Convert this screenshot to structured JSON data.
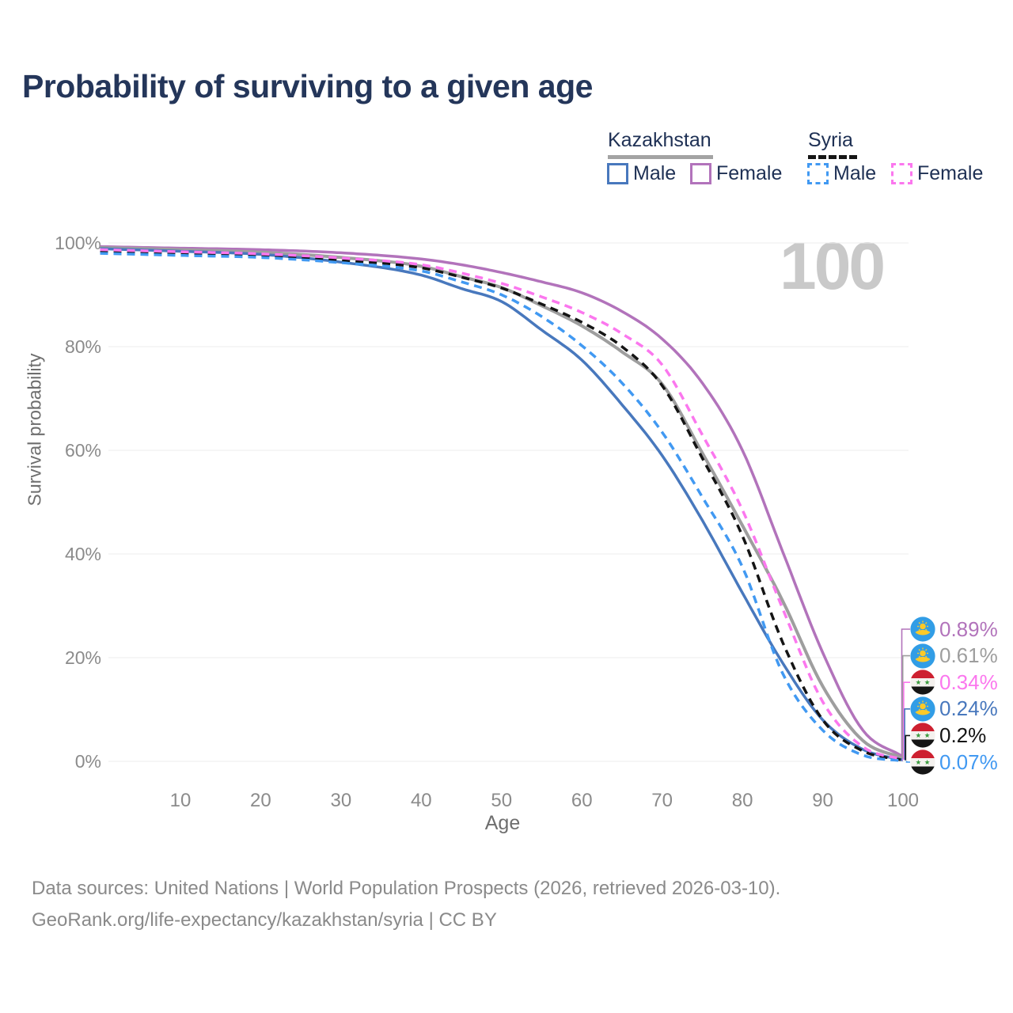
{
  "title": "Probability of surviving to a given age",
  "watermark": "100",
  "legend": {
    "groups": [
      {
        "country": "Kazakhstan",
        "line_style": "solid",
        "line_color": "#a3a3a3",
        "items": [
          {
            "label": "Male",
            "color": "#4878bd",
            "dashed": false
          },
          {
            "label": "Female",
            "color": "#b273bb",
            "dashed": false
          }
        ]
      },
      {
        "country": "Syria",
        "line_style": "dashed",
        "line_color": "#151515",
        "items": [
          {
            "label": "Male",
            "color": "#4199f2",
            "dashed": true
          },
          {
            "label": "Female",
            "color": "#fb77ee",
            "dashed": true
          }
        ]
      }
    ]
  },
  "chart_data": {
    "type": "line",
    "title": "Probability of surviving to a given age",
    "xlabel": "Age",
    "ylabel": "Survival probability",
    "xlim": [
      0,
      100
    ],
    "ylim": [
      0,
      100
    ],
    "grid": "horizontal",
    "legend_position": "top-right",
    "x_ticks": [
      10,
      20,
      30,
      40,
      50,
      60,
      70,
      80,
      90,
      100
    ],
    "y_ticks": [
      0,
      20,
      40,
      60,
      80,
      100
    ],
    "y_tick_suffix": "%",
    "ages": [
      0,
      10,
      20,
      30,
      40,
      45,
      50,
      55,
      60,
      65,
      70,
      75,
      80,
      85,
      90,
      95,
      100
    ],
    "series": [
      {
        "name": "Kazakhstan Female",
        "country": "Kazakhstan",
        "sex": "Female",
        "color": "#b273bb",
        "dash": false,
        "values": [
          99.3,
          99.0,
          98.7,
          98.1,
          96.9,
          95.8,
          94.3,
          92.5,
          90.4,
          86.8,
          81.5,
          73.0,
          60.0,
          40.5,
          21.0,
          6.0,
          0.89
        ]
      },
      {
        "name": "Kazakhstan Both sexes",
        "country": "Kazakhstan",
        "sex": "Both",
        "color": "#9e9e9e",
        "dash": false,
        "values": [
          99.1,
          98.7,
          98.2,
          97.2,
          95.5,
          93.5,
          91.4,
          87.9,
          84.0,
          79.0,
          72.8,
          59.5,
          45.5,
          31.0,
          14.5,
          4.0,
          0.61
        ]
      },
      {
        "name": "Kazakhstan Male",
        "country": "Kazakhstan",
        "sex": "Male",
        "color": "#4878bd",
        "dash": false,
        "values": [
          98.9,
          98.4,
          97.8,
          96.3,
          93.8,
          91.2,
          88.7,
          83.2,
          77.4,
          68.8,
          59.0,
          46.5,
          32.5,
          19.0,
          8.0,
          2.3,
          0.24
        ]
      },
      {
        "name": "Syria Both sexes",
        "country": "Syria",
        "sex": "Both",
        "color": "#141414",
        "dash": true,
        "values": [
          98.4,
          98.0,
          97.6,
          96.7,
          95.2,
          93.4,
          91.3,
          88.2,
          84.7,
          80.0,
          72.5,
          58.5,
          43.5,
          23.0,
          8.0,
          2.0,
          0.2
        ]
      },
      {
        "name": "Syria Male",
        "country": "Syria",
        "sex": "Male",
        "color": "#4199f2",
        "dash": true,
        "values": [
          98.0,
          97.6,
          97.2,
          96.2,
          94.6,
          92.5,
          90.0,
          85.8,
          80.2,
          73.0,
          63.5,
          51.0,
          37.5,
          17.0,
          6.0,
          1.2,
          0.07
        ]
      },
      {
        "name": "Syria Female",
        "country": "Syria",
        "sex": "Female",
        "color": "#fb77ee",
        "dash": true,
        "values": [
          98.7,
          98.3,
          97.9,
          97.1,
          95.8,
          94.2,
          92.2,
          89.6,
          86.6,
          82.5,
          76.5,
          63.0,
          48.5,
          29.5,
          11.5,
          2.8,
          0.34
        ]
      }
    ]
  },
  "right_labels": [
    {
      "value": "0.89%",
      "number": 0.89,
      "flag": "kz",
      "color": "#b273bb"
    },
    {
      "value": "0.61%",
      "number": 0.61,
      "flag": "kz",
      "color": "#9e9e9e"
    },
    {
      "value": "0.34%",
      "number": 0.34,
      "flag": "sy",
      "color": "#fb77ee"
    },
    {
      "value": "0.24%",
      "number": 0.24,
      "flag": "kz",
      "color": "#4878bd"
    },
    {
      "value": "0.2%",
      "number": 0.2,
      "flag": "sy",
      "color": "#141414"
    },
    {
      "value": "0.07%",
      "number": 0.07,
      "flag": "sy",
      "color": "#4199f2"
    }
  ],
  "flag_colors": {
    "kz_blue": "#319de6",
    "kz_gold": "#fcc928",
    "sy_red": "#cd2030",
    "sy_white": "#f4f1ee",
    "sy_black": "#151515",
    "sy_green": "#3e9c41"
  },
  "footer": {
    "line1": "Data sources: United Nations | World Population Prospects (2026, retrieved 2026-03-10).",
    "line2": "GeoRank.org/life-expectancy/kazakhstan/syria | CC BY"
  }
}
